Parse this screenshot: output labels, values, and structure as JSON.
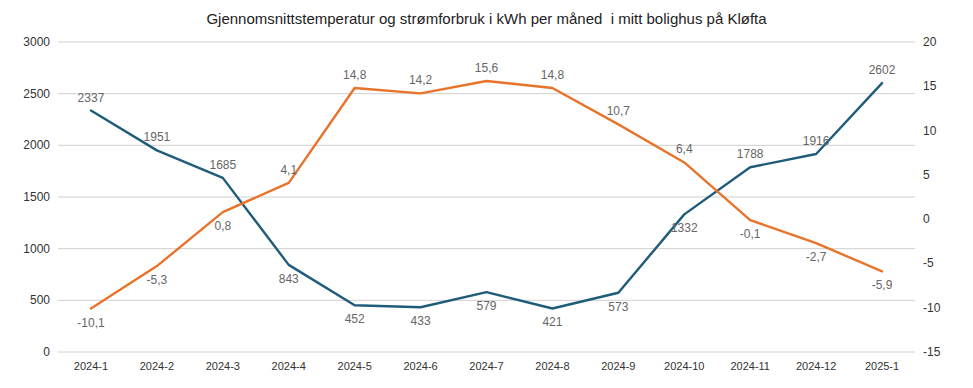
{
  "chart_data": {
    "type": "line",
    "title": "Gjennomsnittstemperatur og strømforbruk i kWh per måned  i mitt bolighus på Kløfta",
    "categories": [
      "2024-1",
      "2024-2",
      "2024-3",
      "2024-4",
      "2024-5",
      "2024-6",
      "2024-7",
      "2024-8",
      "2024-9",
      "2024-10",
      "2024-11",
      "2024-12",
      "2025-1"
    ],
    "series": [
      {
        "color": "#1f5c7a",
        "values": [
          2337,
          1951,
          1685,
          843,
          452,
          433,
          579,
          421,
          573,
          1332,
          1788,
          1916,
          2602
        ]
      },
      {
        "color": "#e8732a",
        "axis": "y2",
        "values": [
          -10.1,
          -5.3,
          0.8,
          4.1,
          14.8,
          14.2,
          15.6,
          14.8,
          10.7,
          6.4,
          -0.1,
          -2.7,
          -5.9
        ],
        "value_labels": [
          "-10,1",
          "-5,3",
          "0,8",
          "4,1",
          "14,8",
          "14,2",
          "15,6",
          "14,8",
          "10,7",
          "6,4",
          "-0,1",
          "-2,7",
          "-5,9"
        ]
      }
    ],
    "ylim": [
      0,
      3000
    ],
    "yticks": [
      0,
      500,
      1000,
      1500,
      2000,
      2500,
      3000
    ],
    "y2lim": [
      -15,
      20
    ],
    "y2ticks": [
      -15,
      -10,
      -5,
      0,
      5,
      10,
      15,
      20
    ],
    "grid": true,
    "data_labels": true
  }
}
